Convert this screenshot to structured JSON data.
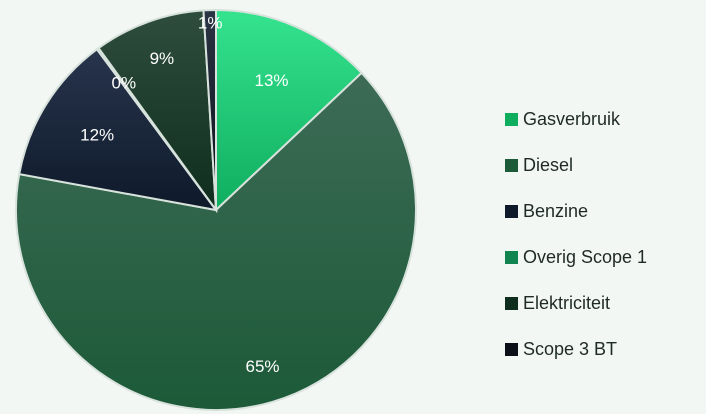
{
  "chart_data": {
    "type": "pie",
    "title": "",
    "labels": [
      "Gasverbruik",
      "Diesel",
      "Benzine",
      "Overig Scope 1",
      "Elektriciteit",
      "Scope 3 BT"
    ],
    "values": [
      13,
      65,
      12,
      0,
      9,
      1
    ],
    "value_labels": [
      "13%",
      "65%",
      "12%",
      "0%",
      "9%",
      "1%"
    ],
    "colors": [
      [
        "#35e38f",
        "#0fae5f"
      ],
      [
        "#3d6b56",
        "#1c5a38"
      ],
      [
        "#27344c",
        "#0e1a2a"
      ],
      [
        "#22b070",
        "#12844f"
      ],
      [
        "#2f4d3d",
        "#0f2d1d"
      ],
      [
        "#2b3445",
        "#0a0f18"
      ]
    ],
    "label_colors": [
      "#ffffff",
      "#ffffff",
      "#ffffff",
      "#ffffff",
      "#ffffff",
      "#ffffff"
    ],
    "legend": {
      "position": "right",
      "items": [
        "Gasverbruik",
        "Diesel",
        "Benzine",
        "Overig Scope 1",
        "Elektriciteit",
        "Scope 3 BT"
      ]
    }
  }
}
